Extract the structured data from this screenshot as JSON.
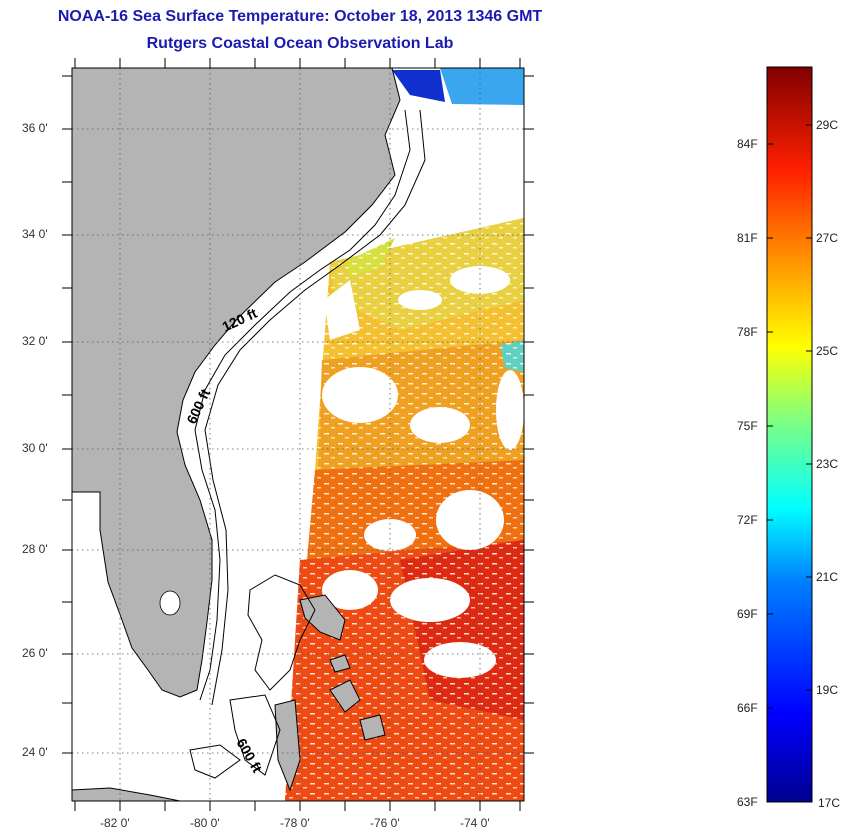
{
  "title": {
    "line1": "NOAA-16 Sea Surface Temperature:  October 18, 2013 1346 GMT",
    "line2": "Rutgers Coastal Ocean Observation Lab"
  },
  "map": {
    "lat_ticks": [
      "36 0'",
      "34 0'",
      "32 0'",
      "30 0'",
      "28 0'",
      "26 0'",
      "24 0'"
    ],
    "lon_ticks": [
      "-82 0'",
      "-80 0'",
      "-78 0'",
      "-76 0'",
      "-74 0'"
    ],
    "lat_range": [
      23,
      37
    ],
    "lon_range": [
      -83,
      -73
    ],
    "contour_labels": [
      "120 ft",
      "600 ft",
      "600 ft"
    ],
    "colors": {
      "land": "#b4b4b4",
      "frame": "#000000"
    }
  },
  "colorbar": {
    "fahrenheit_labels": [
      "84F",
      "81F",
      "78F",
      "75F",
      "72F",
      "69F",
      "66F",
      "63F"
    ],
    "celsius_labels": [
      "29C",
      "27C",
      "25C",
      "23C",
      "21C",
      "19C",
      "17C"
    ],
    "range_c": [
      17,
      30
    ]
  }
}
